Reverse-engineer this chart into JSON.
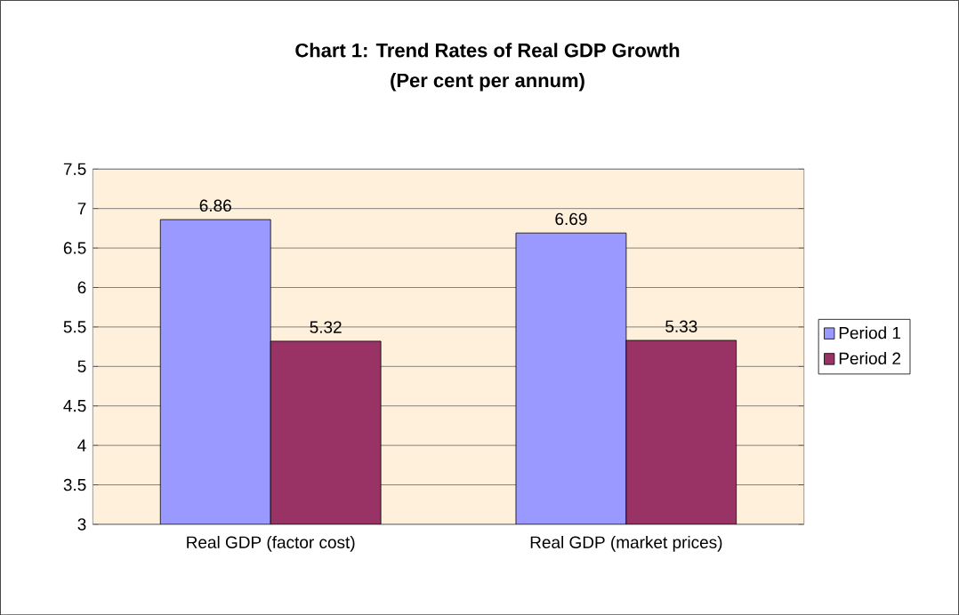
{
  "chart_data": {
    "type": "bar",
    "title": "Chart 1: Trend Rates of Real GDP Growth",
    "subtitle": "(Per cent per annum)",
    "categories": [
      "Real GDP (factor cost)",
      "Real GDP (market prices)"
    ],
    "series": [
      {
        "name": "Period 1",
        "color": "#9999ff",
        "values": [
          6.86,
          6.69
        ]
      },
      {
        "name": "Period 2",
        "color": "#993366",
        "values": [
          5.32,
          5.33
        ]
      }
    ],
    "ylim": [
      3,
      7.5
    ],
    "yticks": [
      3,
      3.5,
      4,
      4.5,
      5,
      5.5,
      6,
      6.5,
      7,
      7.5
    ],
    "grid": "y",
    "legend": "right",
    "data_labels": true
  }
}
